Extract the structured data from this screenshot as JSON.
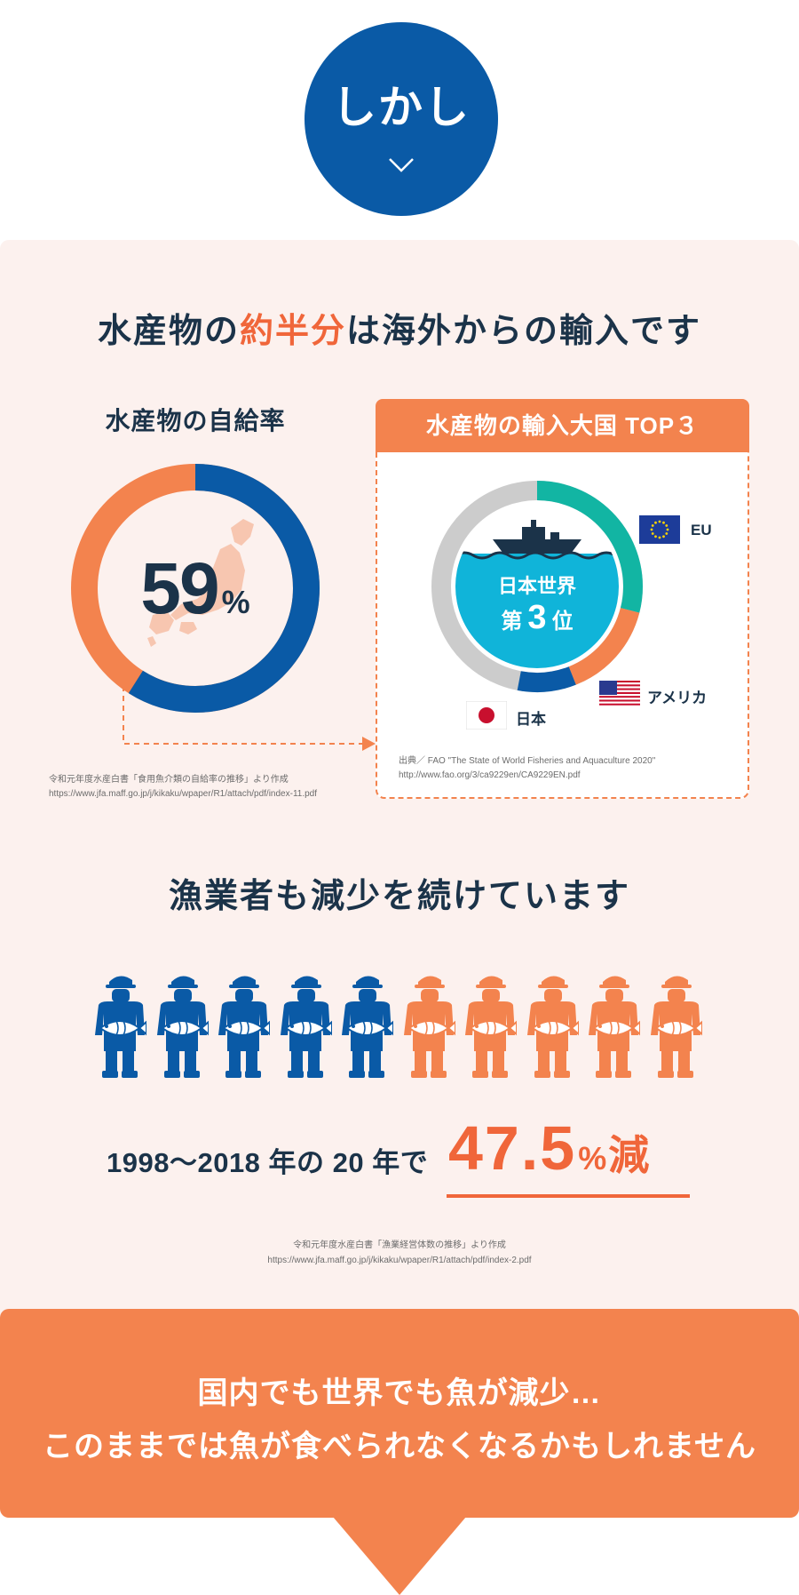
{
  "badge": {
    "label": "しかし"
  },
  "heading1": {
    "before": "水産物の",
    "accent": "約半分",
    "after": "は海外からの輸入です"
  },
  "self_sufficiency": {
    "title": "水産物の自給率",
    "value": "59",
    "unit": "%",
    "rate_fraction": 0.59,
    "source_line1": "令和元年度水産白書「食用魚介類の自給率の推移」より作成",
    "source_line2": "https://www.jfa.maff.go.jp/j/kikaku/wpaper/R1/attach/pdf/index-11.pdf"
  },
  "import_top3": {
    "title": "水産物の輸入大国 TOP３",
    "inner_line1": "日本世界",
    "inner_rank_prefix": "第",
    "inner_rank": "3",
    "inner_rank_suffix": "位",
    "labels": {
      "eu": "EU",
      "usa": "アメリカ",
      "japan": "日本"
    },
    "source_line1": "出典／ FAO \"The State of World Fisheries and Aquaculture 2020\"",
    "source_line2": "http://www.fao.org/3/ca9229en/CA9229EN.pdf"
  },
  "heading2": "漁業者も減少を続けています",
  "fishers": {
    "total": 10,
    "remaining": 5,
    "blue": "#0a5aa6",
    "orange": "#f3834e"
  },
  "stat": {
    "prefix": "1998〜2018 年の 20 年で",
    "value": "47.5",
    "unit": "%",
    "suffix": "減",
    "source_line1": "令和元年度水産白書「漁業経営体数の推移」より作成",
    "source_line2": "https://www.jfa.maff.go.jp/j/kikaku/wpaper/R1/attach/pdf/index-2.pdf"
  },
  "banner": {
    "line1": "国内でも世界でも魚が減少…",
    "line2": "このままでは魚が食べられなくなるかもしれません"
  },
  "colors": {
    "navy": "#0a5aa6",
    "orange": "#f3834e",
    "accent": "#f0663a",
    "teal": "#12b5a3",
    "cyan": "#10b4d9",
    "gray": "#cccccc",
    "panel": "#fcf1ee"
  }
}
